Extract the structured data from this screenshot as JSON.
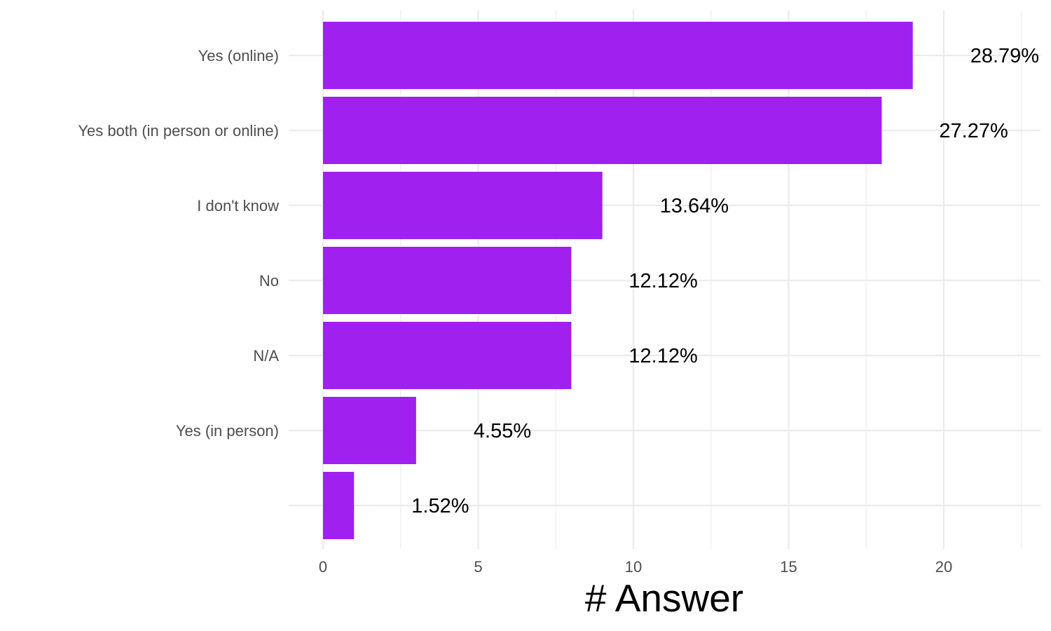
{
  "chart_data": {
    "type": "bar",
    "orientation": "horizontal",
    "categories": [
      "Yes (online)",
      "Yes both (in person or online)",
      "I don't know",
      "No",
      "N/A",
      "Yes (in person)",
      ""
    ],
    "values": [
      19,
      18,
      9,
      8,
      8,
      3,
      1
    ],
    "data_labels": [
      "28.79%",
      "27.27%",
      "13.64%",
      "12.12%",
      "12.12%",
      "4.55%",
      "1.52%"
    ],
    "xlabel": "# Answer",
    "ylabel": "",
    "title": "",
    "xlim": [
      0,
      22.5
    ],
    "x_ticks": [
      0,
      5,
      10,
      15,
      20
    ],
    "x_tick_labels": [
      "0",
      "5",
      "10",
      "15",
      "20"
    ],
    "grid": true,
    "legend": "none",
    "bar_color": "#a020f0"
  }
}
